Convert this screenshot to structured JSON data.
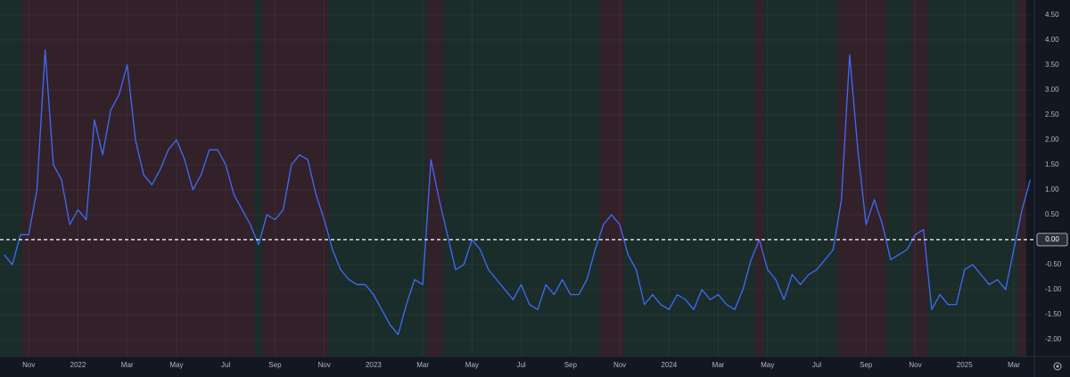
{
  "chart_data": {
    "type": "line",
    "categories": [
      null,
      null,
      null,
      "Nov",
      null,
      null,
      null,
      null,
      null,
      "2022",
      null,
      null,
      null,
      null,
      null,
      "Mar",
      null,
      null,
      null,
      null,
      null,
      "May",
      null,
      null,
      null,
      null,
      null,
      "Jul",
      null,
      null,
      null,
      null,
      null,
      "Sep",
      null,
      null,
      null,
      null,
      null,
      "Nov",
      null,
      null,
      null,
      null,
      null,
      "2023",
      null,
      null,
      null,
      null,
      null,
      "Mar",
      null,
      null,
      null,
      null,
      null,
      "May",
      null,
      null,
      null,
      null,
      null,
      "Jul",
      null,
      null,
      null,
      null,
      null,
      "Sep",
      null,
      null,
      null,
      null,
      null,
      "Nov",
      null,
      null,
      null,
      null,
      null,
      "2024",
      null,
      null,
      null,
      null,
      null,
      "Mar",
      null,
      null,
      null,
      null,
      null,
      "May",
      null,
      null,
      null,
      null,
      null,
      "Jul",
      null,
      null,
      null,
      null,
      null,
      "Sep",
      null,
      null,
      null,
      null,
      null,
      "Nov",
      null,
      null,
      null,
      null,
      null,
      "2025",
      null,
      null,
      null,
      null,
      null,
      "Mar",
      null,
      null
    ],
    "series": [
      {
        "color": "#3d6cf5",
        "values": [
          -0.3,
          -0.5,
          0.1,
          0.1,
          1.0,
          3.8,
          1.5,
          1.2,
          0.3,
          0.6,
          0.4,
          2.4,
          1.7,
          2.6,
          2.9,
          3.5,
          2.0,
          1.3,
          1.1,
          1.4,
          1.8,
          2.0,
          1.6,
          1.0,
          1.3,
          1.8,
          1.8,
          1.5,
          0.9,
          0.6,
          0.3,
          -0.1,
          0.5,
          0.4,
          0.6,
          1.5,
          1.7,
          1.6,
          0.9,
          0.4,
          -0.2,
          -0.6,
          -0.8,
          -0.9,
          -0.9,
          -1.1,
          -1.4,
          -1.7,
          -1.9,
          -1.3,
          -0.8,
          -0.9,
          1.6,
          0.8,
          0.1,
          -0.6,
          -0.5,
          0.0,
          -0.2,
          -0.6,
          -0.8,
          -1.0,
          -1.2,
          -0.9,
          -1.3,
          -1.4,
          -0.9,
          -1.1,
          -0.8,
          -1.1,
          -1.1,
          -0.8,
          -0.2,
          0.3,
          0.5,
          0.3,
          -0.3,
          -0.6,
          -1.3,
          -1.1,
          -1.3,
          -1.4,
          -1.1,
          -1.2,
          -1.4,
          -1.0,
          -1.2,
          -1.1,
          -1.3,
          -1.4,
          -1.0,
          -0.4,
          0.0,
          -0.6,
          -0.8,
          -1.2,
          -0.7,
          -0.9,
          -0.7,
          -0.6,
          -0.4,
          -0.2,
          0.8,
          3.7,
          1.8,
          0.3,
          0.8,
          0.3,
          -0.4,
          -0.3,
          -0.2,
          0.1,
          0.2,
          -1.4,
          -1.1,
          -1.3,
          -1.3,
          -0.6,
          -0.5,
          -0.7,
          -0.9,
          -0.8,
          -1.0,
          -0.2,
          0.6,
          1.2
        ]
      }
    ],
    "bands": [
      {
        "from": 0,
        "to": 2.7,
        "color": "#1b2d2a"
      },
      {
        "from": 2.7,
        "to": 31,
        "color": "#33212a"
      },
      {
        "from": 31,
        "to": 32,
        "color": "#1b2d2a"
      },
      {
        "from": 32,
        "to": 40,
        "color": "#33212a"
      },
      {
        "from": 40,
        "to": 52,
        "color": "#1b2d2a"
      },
      {
        "from": 52,
        "to": 54,
        "color": "#33212a"
      },
      {
        "from": 54,
        "to": 73,
        "color": "#1b2d2a"
      },
      {
        "from": 73,
        "to": 76,
        "color": "#33212a"
      },
      {
        "from": 76,
        "to": 92,
        "color": "#1b2d2a"
      },
      {
        "from": 92,
        "to": 93,
        "color": "#33212a"
      },
      {
        "from": 93,
        "to": 102,
        "color": "#1b2d2a"
      },
      {
        "from": 102,
        "to": 108,
        "color": "#33212a"
      },
      {
        "from": 108,
        "to": 111,
        "color": "#1b2d2a"
      },
      {
        "from": 111,
        "to": 113,
        "color": "#33212a"
      },
      {
        "from": 113,
        "to": 124,
        "color": "#1b2d2a"
      },
      {
        "from": 124,
        "to": 125,
        "color": "#33212a"
      }
    ],
    "ylim": [
      -2.34,
      4.8
    ],
    "yticks": [
      {
        "value": -2,
        "label": "-2.00"
      },
      {
        "value": -1.5,
        "label": "-1.50"
      },
      {
        "value": -1,
        "label": "-1.00"
      },
      {
        "value": -0.5,
        "label": "-0.50"
      },
      {
        "value": 0.5,
        "label": "0.50"
      },
      {
        "value": 1,
        "label": "1.00"
      },
      {
        "value": 1.5,
        "label": "1.50"
      },
      {
        "value": 2,
        "label": "2.00"
      },
      {
        "value": 2.5,
        "label": "2.50"
      },
      {
        "value": 3,
        "label": "3.00"
      },
      {
        "value": 3.5,
        "label": "3.50"
      },
      {
        "value": 4,
        "label": "4.00"
      },
      {
        "value": 4.5,
        "label": "4.50"
      }
    ],
    "hline": {
      "value": 0,
      "label": "0.00"
    },
    "grid": true
  }
}
